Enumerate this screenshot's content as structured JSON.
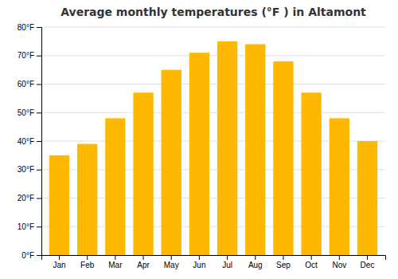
{
  "chart_data": {
    "type": "bar",
    "title": "Average monthly temperatures (°F ) in Altamont",
    "categories": [
      "Jan",
      "Feb",
      "Mar",
      "Apr",
      "May",
      "Jun",
      "Jul",
      "Aug",
      "Sep",
      "Oct",
      "Nov",
      "Dec"
    ],
    "values": [
      35,
      39,
      48,
      57,
      65,
      71,
      75,
      74,
      68,
      57,
      48,
      40
    ],
    "color": "#FFB800",
    "ylim": [
      0,
      80
    ],
    "yticks": [
      {
        "value": 0,
        "label": "0°F"
      },
      {
        "value": 10,
        "label": "10°F"
      },
      {
        "value": 20,
        "label": "20°F"
      },
      {
        "value": 30,
        "label": "30°F"
      },
      {
        "value": 40,
        "label": "40°F"
      },
      {
        "value": 50,
        "label": "50°F"
      },
      {
        "value": 60,
        "label": "60°F"
      },
      {
        "value": 70,
        "label": "70°F"
      },
      {
        "value": 80,
        "label": "80°F"
      }
    ],
    "grid": true
  }
}
